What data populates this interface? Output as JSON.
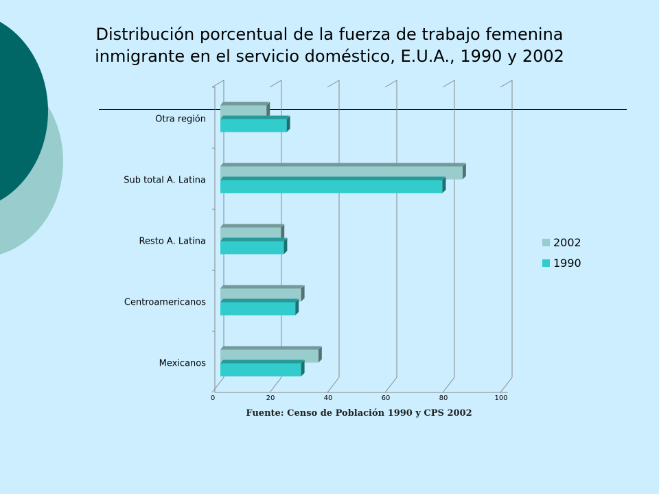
{
  "title": {
    "line1": "Distribución porcentual de la fuerza de trabajo femenina",
    "line2": "inmigrante en el servicio doméstico, E.U.A., 1990 y 2002"
  },
  "source": "Fuente: Censo de Población 1990 y CPS 2002",
  "colors": {
    "background": "#cceeff",
    "series_2002": "#99cccc",
    "series_1990": "#33cccc",
    "deco_dark": "#006666",
    "deco_light": "#99cccc"
  },
  "chart_data": {
    "type": "bar",
    "orientation": "horizontal",
    "style": "3d-clustered",
    "categories": [
      "Otra región",
      "Sub total A. Latina",
      "Resto A. Latina",
      "Centroamericanos",
      "Mexicanos"
    ],
    "series": [
      {
        "name": "2002",
        "color": "#99cccc",
        "values": [
          16,
          84,
          21,
          28,
          34
        ]
      },
      {
        "name": "1990",
        "color": "#33cccc",
        "values": [
          23,
          77,
          22,
          26,
          28
        ]
      }
    ],
    "xlim": [
      0,
      100
    ],
    "xticks": [
      "0",
      "20",
      "40",
      "60",
      "80",
      "100"
    ],
    "grid": true,
    "legend_position": "right"
  }
}
